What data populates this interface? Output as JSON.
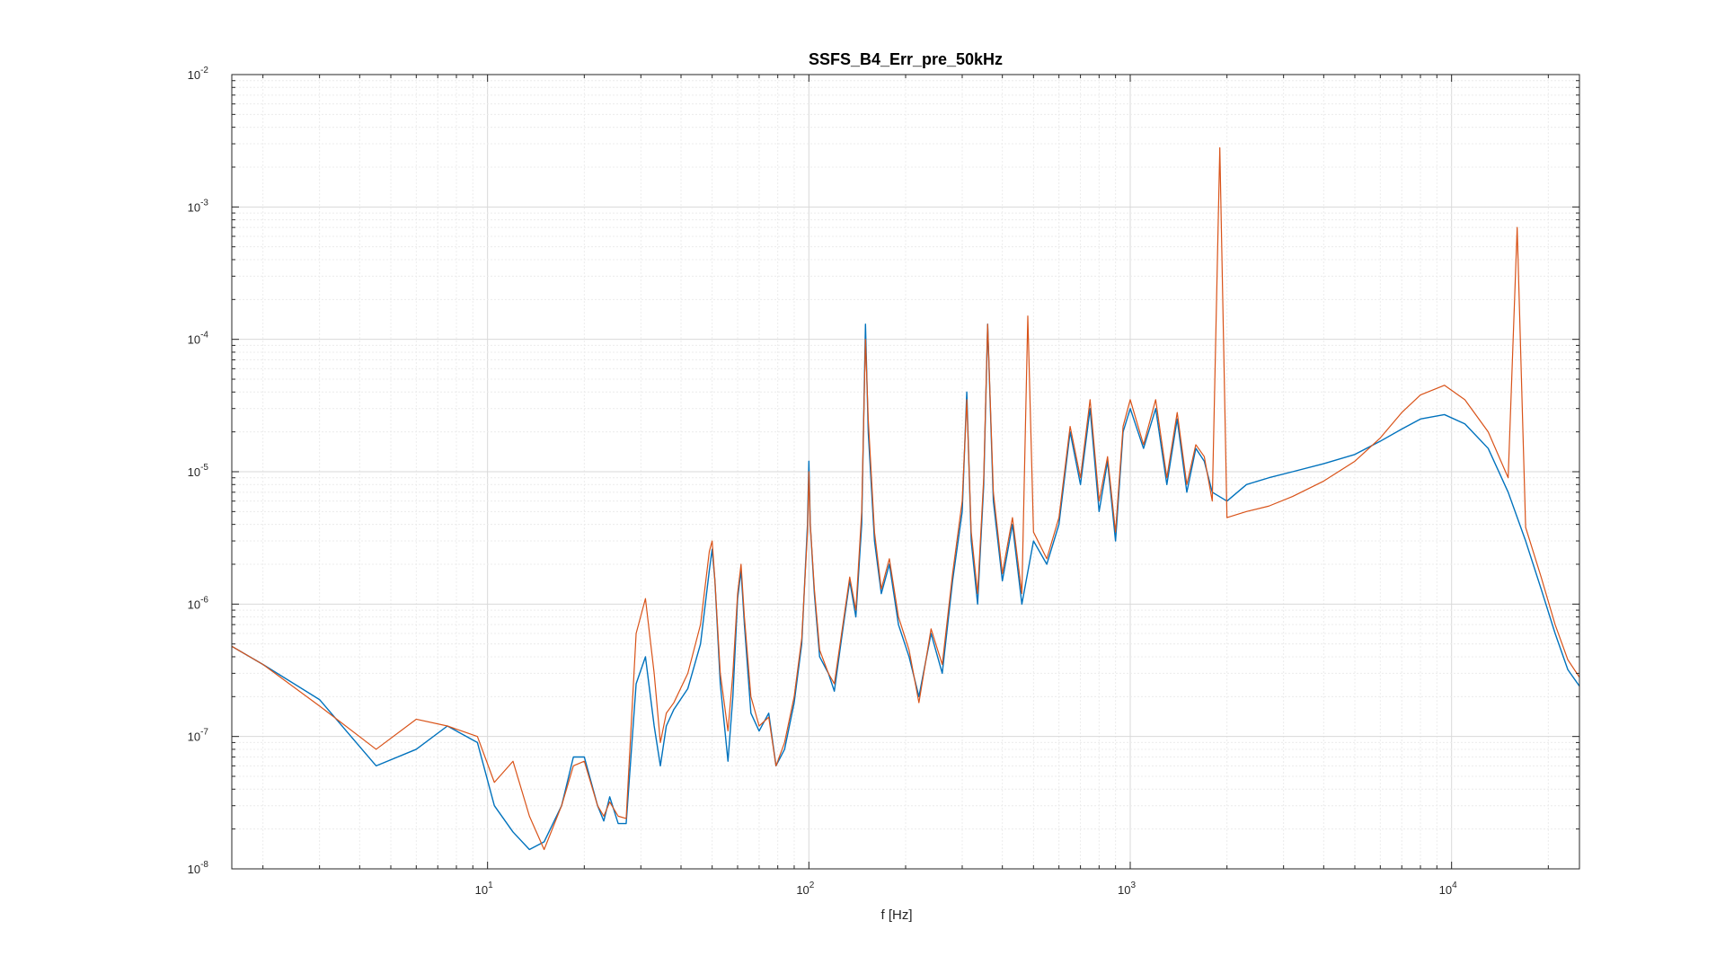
{
  "chart_data": {
    "type": "line",
    "title": "SSFS_B4_Err_pre_50kHz",
    "xlabel": "f [Hz]",
    "ylabel": "",
    "xscale": "log",
    "yscale": "log",
    "xlim": [
      1.6,
      25000
    ],
    "ylim": [
      1e-08,
      0.01
    ],
    "grid": true,
    "minor_grid": true,
    "legend": "none",
    "x_ticks": [
      {
        "value": 10,
        "base": "10",
        "exp": "1"
      },
      {
        "value": 100,
        "base": "10",
        "exp": "2"
      },
      {
        "value": 1000,
        "base": "10",
        "exp": "3"
      },
      {
        "value": 10000,
        "base": "10",
        "exp": "4"
      }
    ],
    "y_ticks": [
      {
        "value": 1e-08,
        "base": "10",
        "exp": "-8"
      },
      {
        "value": 1e-07,
        "base": "10",
        "exp": "-7"
      },
      {
        "value": 1e-06,
        "base": "10",
        "exp": "-6"
      },
      {
        "value": 1e-05,
        "base": "10",
        "exp": "-5"
      },
      {
        "value": 0.0001,
        "base": "10",
        "exp": "-4"
      },
      {
        "value": 0.001,
        "base": "10",
        "exp": "-3"
      },
      {
        "value": 0.01,
        "base": "10",
        "exp": "-2"
      }
    ],
    "series": [
      {
        "color": "#0072BD",
        "points": [
          [
            1.6,
            4.8e-07
          ],
          [
            2.0,
            3.5e-07
          ],
          [
            3.0,
            1.9e-07
          ],
          [
            4.5,
            6e-08
          ],
          [
            6.0,
            8e-08
          ],
          [
            7.5,
            1.2e-07
          ],
          [
            9.3,
            9e-08
          ],
          [
            10.5,
            3e-08
          ],
          [
            12.0,
            1.9e-08
          ],
          [
            13.5,
            1.4e-08
          ],
          [
            15.0,
            1.6e-08
          ],
          [
            17.0,
            3e-08
          ],
          [
            18.5,
            7e-08
          ],
          [
            20.0,
            7e-08
          ],
          [
            22.0,
            3e-08
          ],
          [
            23.0,
            2.3e-08
          ],
          [
            24.0,
            3.5e-08
          ],
          [
            25.5,
            2.2e-08
          ],
          [
            27.0,
            2.2e-08
          ],
          [
            29.0,
            2.5e-07
          ],
          [
            31.0,
            4e-07
          ],
          [
            33.0,
            1.2e-07
          ],
          [
            34.5,
            6e-08
          ],
          [
            36.0,
            1.2e-07
          ],
          [
            38.0,
            1.6e-07
          ],
          [
            42.0,
            2.3e-07
          ],
          [
            46.0,
            5e-07
          ],
          [
            49.0,
            1.8e-06
          ],
          [
            50.0,
            2.6e-06
          ],
          [
            51.0,
            1.5e-06
          ],
          [
            53.0,
            2.5e-07
          ],
          [
            56.0,
            6.5e-08
          ],
          [
            58.0,
            2e-07
          ],
          [
            60.0,
            1.1e-06
          ],
          [
            61.5,
            1.8e-06
          ],
          [
            63.0,
            7e-07
          ],
          [
            66.0,
            1.5e-07
          ],
          [
            70.0,
            1.1e-07
          ],
          [
            75.0,
            1.5e-07
          ],
          [
            79.0,
            6e-08
          ],
          [
            84.0,
            8e-08
          ],
          [
            90.0,
            1.8e-07
          ],
          [
            95.0,
            5e-07
          ],
          [
            99.0,
            4e-06
          ],
          [
            100.0,
            1.2e-05
          ],
          [
            101.0,
            4e-06
          ],
          [
            104.0,
            1.2e-06
          ],
          [
            108.0,
            4e-07
          ],
          [
            115.0,
            3e-07
          ],
          [
            120.0,
            2.2e-07
          ],
          [
            127.0,
            6e-07
          ],
          [
            134.0,
            1.5e-06
          ],
          [
            140.0,
            8e-07
          ],
          [
            146.0,
            4e-06
          ],
          [
            150.0,
            0.00013
          ],
          [
            153.0,
            2e-05
          ],
          [
            160.0,
            3e-06
          ],
          [
            168.0,
            1.2e-06
          ],
          [
            178.0,
            2e-06
          ],
          [
            190.0,
            7e-07
          ],
          [
            205.0,
            4e-07
          ],
          [
            220.0,
            2e-07
          ],
          [
            240.0,
            6e-07
          ],
          [
            260.0,
            3e-07
          ],
          [
            280.0,
            1.5e-06
          ],
          [
            300.0,
            5e-06
          ],
          [
            310.0,
            4e-05
          ],
          [
            320.0,
            3e-06
          ],
          [
            335.0,
            1e-06
          ],
          [
            350.0,
            8e-06
          ],
          [
            360.0,
            0.00013
          ],
          [
            375.0,
            6e-06
          ],
          [
            400.0,
            1.5e-06
          ],
          [
            430.0,
            4e-06
          ],
          [
            460.0,
            1e-06
          ],
          [
            500.0,
            3e-06
          ],
          [
            550.0,
            2e-06
          ],
          [
            600.0,
            4e-06
          ],
          [
            650.0,
            2e-05
          ],
          [
            700.0,
            8e-06
          ],
          [
            750.0,
            3e-05
          ],
          [
            800.0,
            5e-06
          ],
          [
            850.0,
            1.2e-05
          ],
          [
            900.0,
            3e-06
          ],
          [
            950.0,
            2e-05
          ],
          [
            1000.0,
            3e-05
          ],
          [
            1100.0,
            1.5e-05
          ],
          [
            1200.0,
            3e-05
          ],
          [
            1300.0,
            8e-06
          ],
          [
            1400.0,
            2.5e-05
          ],
          [
            1500.0,
            7e-06
          ],
          [
            1600.0,
            1.5e-05
          ],
          [
            1700.0,
            1.2e-05
          ],
          [
            1800.0,
            7e-06
          ],
          [
            2000.0,
            6e-06
          ],
          [
            2300.0,
            8e-06
          ],
          [
            2700.0,
            9e-06
          ],
          [
            3200.0,
            1e-05
          ],
          [
            4000.0,
            1.15e-05
          ],
          [
            5000.0,
            1.35e-05
          ],
          [
            6000.0,
            1.7e-05
          ],
          [
            7000.0,
            2.1e-05
          ],
          [
            8000.0,
            2.5e-05
          ],
          [
            9500.0,
            2.7e-05
          ],
          [
            11000.0,
            2.3e-05
          ],
          [
            13000.0,
            1.5e-05
          ],
          [
            15000.0,
            7e-06
          ],
          [
            17000.0,
            3e-06
          ],
          [
            19000.0,
            1.3e-06
          ],
          [
            21000.0,
            6e-07
          ],
          [
            23000.0,
            3.2e-07
          ],
          [
            25000.0,
            2.4e-07
          ]
        ]
      },
      {
        "color": "#D95319",
        "points": [
          [
            1.6,
            4.8e-07
          ],
          [
            2.0,
            3.5e-07
          ],
          [
            3.0,
            1.7e-07
          ],
          [
            4.5,
            8e-08
          ],
          [
            6.0,
            1.35e-07
          ],
          [
            7.5,
            1.2e-07
          ],
          [
            9.3,
            1e-07
          ],
          [
            10.5,
            4.5e-08
          ],
          [
            12.0,
            6.5e-08
          ],
          [
            13.5,
            2.5e-08
          ],
          [
            15.0,
            1.4e-08
          ],
          [
            17.0,
            3e-08
          ],
          [
            18.5,
            6e-08
          ],
          [
            20.0,
            6.5e-08
          ],
          [
            22.0,
            3e-08
          ],
          [
            23.0,
            2.5e-08
          ],
          [
            24.0,
            3.2e-08
          ],
          [
            25.5,
            2.5e-08
          ],
          [
            27.0,
            2.4e-08
          ],
          [
            29.0,
            6e-07
          ],
          [
            31.0,
            1.1e-06
          ],
          [
            33.0,
            3e-07
          ],
          [
            34.5,
            9e-08
          ],
          [
            36.0,
            1.5e-07
          ],
          [
            38.0,
            1.8e-07
          ],
          [
            42.0,
            3e-07
          ],
          [
            46.0,
            7e-07
          ],
          [
            49.0,
            2.5e-06
          ],
          [
            50.0,
            3e-06
          ],
          [
            51.0,
            1.5e-06
          ],
          [
            53.0,
            3e-07
          ],
          [
            56.0,
            1.1e-07
          ],
          [
            58.0,
            3e-07
          ],
          [
            60.0,
            1.2e-06
          ],
          [
            61.5,
            2e-06
          ],
          [
            63.0,
            8e-07
          ],
          [
            66.0,
            2e-07
          ],
          [
            70.0,
            1.2e-07
          ],
          [
            75.0,
            1.4e-07
          ],
          [
            79.0,
            6e-08
          ],
          [
            84.0,
            9e-08
          ],
          [
            90.0,
            2e-07
          ],
          [
            95.0,
            5.5e-07
          ],
          [
            99.0,
            3.5e-06
          ],
          [
            100.0,
            1e-05
          ],
          [
            101.0,
            4e-06
          ],
          [
            104.0,
            1.3e-06
          ],
          [
            108.0,
            4.5e-07
          ],
          [
            115.0,
            3e-07
          ],
          [
            120.0,
            2.5e-07
          ],
          [
            127.0,
            6.5e-07
          ],
          [
            134.0,
            1.6e-06
          ],
          [
            140.0,
            9e-07
          ],
          [
            146.0,
            5e-06
          ],
          [
            150.0,
            0.0001
          ],
          [
            153.0,
            2.5e-05
          ],
          [
            160.0,
            3.5e-06
          ],
          [
            168.0,
            1.3e-06
          ],
          [
            178.0,
            2.2e-06
          ],
          [
            190.0,
            8e-07
          ],
          [
            205.0,
            4.5e-07
          ],
          [
            220.0,
            1.8e-07
          ],
          [
            240.0,
            6.5e-07
          ],
          [
            260.0,
            3.5e-07
          ],
          [
            280.0,
            1.7e-06
          ],
          [
            300.0,
            6e-06
          ],
          [
            310.0,
            3.5e-05
          ],
          [
            320.0,
            3.5e-06
          ],
          [
            335.0,
            1.2e-06
          ],
          [
            350.0,
            9e-06
          ],
          [
            360.0,
            0.00013
          ],
          [
            375.0,
            7e-06
          ],
          [
            400.0,
            1.7e-06
          ],
          [
            430.0,
            4.5e-06
          ],
          [
            460.0,
            1.2e-06
          ],
          [
            480.0,
            0.00015
          ],
          [
            500.0,
            3.5e-06
          ],
          [
            550.0,
            2.2e-06
          ],
          [
            600.0,
            4.5e-06
          ],
          [
            650.0,
            2.2e-05
          ],
          [
            700.0,
            9e-06
          ],
          [
            750.0,
            3.5e-05
          ],
          [
            800.0,
            6e-06
          ],
          [
            850.0,
            1.3e-05
          ],
          [
            900.0,
            3.5e-06
          ],
          [
            950.0,
            2.2e-05
          ],
          [
            1000.0,
            3.5e-05
          ],
          [
            1100.0,
            1.6e-05
          ],
          [
            1200.0,
            3.5e-05
          ],
          [
            1300.0,
            9e-06
          ],
          [
            1400.0,
            2.8e-05
          ],
          [
            1500.0,
            8e-06
          ],
          [
            1600.0,
            1.6e-05
          ],
          [
            1700.0,
            1.3e-05
          ],
          [
            1800.0,
            6e-06
          ],
          [
            1900.0,
            0.0028
          ],
          [
            2000.0,
            4.5e-06
          ],
          [
            2300.0,
            5e-06
          ],
          [
            2700.0,
            5.5e-06
          ],
          [
            3200.0,
            6.5e-06
          ],
          [
            4000.0,
            8.5e-06
          ],
          [
            5000.0,
            1.2e-05
          ],
          [
            6000.0,
            1.8e-05
          ],
          [
            7000.0,
            2.8e-05
          ],
          [
            8000.0,
            3.8e-05
          ],
          [
            9500.0,
            4.5e-05
          ],
          [
            11000.0,
            3.5e-05
          ],
          [
            13000.0,
            2e-05
          ],
          [
            15000.0,
            9e-06
          ],
          [
            16000.0,
            0.0007
          ],
          [
            17000.0,
            3.8e-06
          ],
          [
            19000.0,
            1.6e-06
          ],
          [
            21000.0,
            7e-07
          ],
          [
            23000.0,
            3.8e-07
          ],
          [
            25000.0,
            2.8e-07
          ]
        ]
      }
    ]
  }
}
